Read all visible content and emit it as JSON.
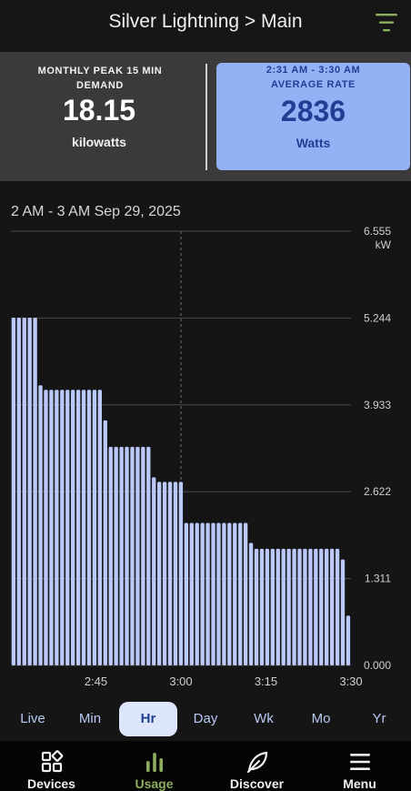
{
  "header": {
    "title": "Silver Lightning > Main",
    "filter_icon": "filter-icon"
  },
  "summary": {
    "peak": {
      "label": "MONTHLY PEAK 15 MIN DEMAND",
      "value": "18.15",
      "unit": "kilowatts"
    },
    "rate": {
      "time_range": "2:31 AM - 3:30 AM",
      "label": "AVERAGE RATE",
      "value": "2836",
      "unit": "Watts"
    }
  },
  "colors": {
    "bar": "#bac8fa",
    "rate_card": "#93b2f6",
    "rate_text": "#1f3f94",
    "nav_active": "#8cae5e",
    "grid": "#4a4a4a"
  },
  "chart": {
    "period_label": "2 AM - 3 AM Sep 29, 2025"
  },
  "chart_data": {
    "type": "bar",
    "title": "",
    "y_unit": "kW",
    "ylim": [
      0,
      6.555
    ],
    "y_ticks": [
      "0.000",
      "1.311",
      "2.622",
      "3.933",
      "5.244",
      "6.555"
    ],
    "x_ticks": [
      {
        "label": "2:45",
        "minute": 45
      },
      {
        "label": "3:00",
        "minute": 60
      },
      {
        "label": "3:15",
        "minute": 75
      },
      {
        "label": "3:30",
        "minute": 90
      }
    ],
    "x_range_minutes": [
      30,
      90
    ],
    "reference_line_minute": 60,
    "grid": true,
    "values": [
      5.25,
      5.25,
      5.25,
      5.25,
      5.25,
      4.23,
      4.16,
      4.16,
      4.16,
      4.16,
      4.16,
      4.16,
      4.16,
      4.16,
      4.16,
      4.16,
      4.16,
      3.7,
      3.3,
      3.3,
      3.3,
      3.3,
      3.3,
      3.3,
      3.3,
      3.3,
      2.84,
      2.77,
      2.77,
      2.77,
      2.77,
      2.77,
      2.15,
      2.15,
      2.15,
      2.15,
      2.15,
      2.15,
      2.15,
      2.15,
      2.15,
      2.15,
      2.15,
      2.15,
      1.85,
      1.76,
      1.76,
      1.76,
      1.76,
      1.76,
      1.76,
      1.76,
      1.76,
      1.76,
      1.76,
      1.76,
      1.76,
      1.76,
      1.76,
      1.76,
      1.76,
      1.6,
      0.75
    ]
  },
  "range_tabs": [
    {
      "label": "Live"
    },
    {
      "label": "Min"
    },
    {
      "label": "Hr",
      "active": true
    },
    {
      "label": "Day"
    },
    {
      "label": "Wk"
    },
    {
      "label": "Mo"
    },
    {
      "label": "Yr"
    }
  ],
  "nav": [
    {
      "label": "Devices",
      "icon": "devices-icon"
    },
    {
      "label": "Usage",
      "icon": "usage-icon",
      "active": true
    },
    {
      "label": "Discover",
      "icon": "leaf-icon"
    },
    {
      "label": "Menu",
      "icon": "menu-icon"
    }
  ]
}
